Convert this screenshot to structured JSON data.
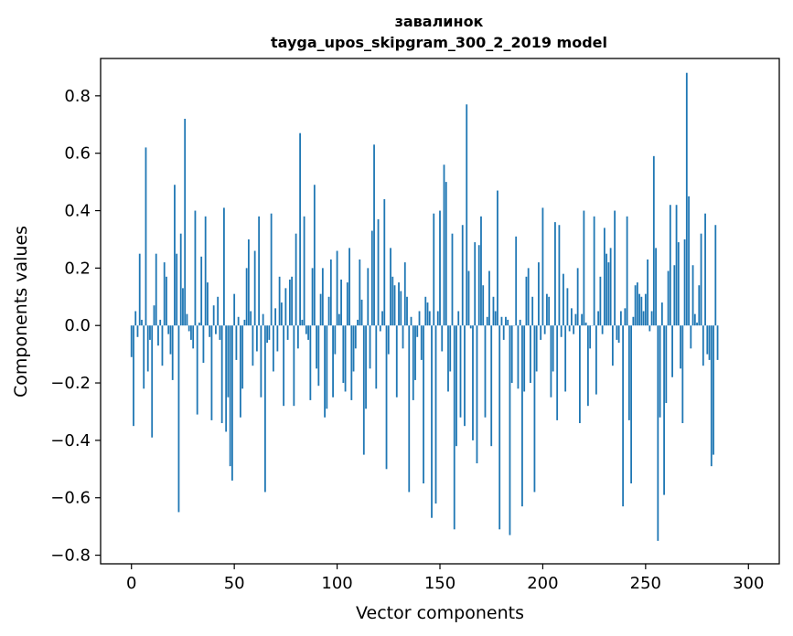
{
  "chart_data": {
    "type": "bar",
    "title_line1": "завалинок",
    "title_line2": "tayga_upos_skipgram_300_2_2019 model",
    "xlabel": "Vector components",
    "ylabel": "Components values",
    "xlim": [
      -15,
      315
    ],
    "ylim": [
      -0.83,
      0.93
    ],
    "xticks": [
      0,
      50,
      100,
      150,
      200,
      250,
      300
    ],
    "xtick_labels": [
      "0",
      "50",
      "100",
      "150",
      "200",
      "250",
      "300"
    ],
    "yticks": [
      -0.8,
      -0.6,
      -0.4,
      -0.2,
      0.0,
      0.2,
      0.4,
      0.6,
      0.8
    ],
    "ytick_labels": [
      "−0.8",
      "−0.6",
      "−0.4",
      "−0.2",
      "0.0",
      "0.2",
      "0.4",
      "0.6",
      "0.8"
    ],
    "bar_color": "#1f77b4",
    "grid": false,
    "values": [
      -0.11,
      -0.35,
      0.05,
      -0.04,
      0.25,
      0.02,
      -0.22,
      0.62,
      -0.16,
      -0.05,
      -0.39,
      0.07,
      0.25,
      -0.07,
      0.02,
      -0.14,
      0.22,
      0.17,
      -0.03,
      -0.1,
      -0.19,
      0.49,
      0.25,
      -0.65,
      0.32,
      0.13,
      0.72,
      0.04,
      -0.02,
      -0.05,
      -0.08,
      0.4,
      -0.31,
      0.01,
      0.24,
      -0.13,
      0.38,
      0.15,
      -0.04,
      -0.33,
      0.07,
      -0.03,
      0.1,
      -0.05,
      -0.34,
      0.41,
      -0.37,
      -0.25,
      -0.49,
      -0.54,
      0.11,
      -0.12,
      0.03,
      -0.32,
      -0.22,
      0.02,
      0.2,
      0.3,
      0.05,
      -0.14,
      0.26,
      -0.09,
      0.38,
      -0.25,
      0.04,
      -0.58,
      -0.06,
      -0.05,
      0.39,
      -0.16,
      0.06,
      -0.09,
      0.17,
      0.08,
      -0.28,
      0.13,
      -0.05,
      0.16,
      0.17,
      -0.28,
      0.32,
      -0.08,
      0.67,
      0.02,
      0.38,
      -0.03,
      -0.05,
      -0.26,
      0.2,
      0.49,
      -0.15,
      -0.21,
      0.11,
      0.2,
      -0.32,
      -0.29,
      0.1,
      0.23,
      -0.25,
      -0.1,
      0.26,
      0.04,
      0.16,
      -0.2,
      -0.23,
      0.15,
      0.27,
      -0.26,
      -0.16,
      -0.08,
      0.02,
      0.23,
      0.09,
      -0.45,
      -0.29,
      0.2,
      -0.15,
      0.33,
      0.63,
      -0.22,
      0.37,
      -0.02,
      0.05,
      0.44,
      -0.5,
      -0.1,
      0.27,
      0.17,
      0.14,
      -0.25,
      0.15,
      0.12,
      -0.08,
      0.22,
      0.1,
      -0.58,
      0.03,
      -0.26,
      -0.19,
      -0.04,
      0.05,
      -0.12,
      -0.55,
      0.1,
      0.08,
      0.05,
      -0.67,
      0.39,
      -0.62,
      0.05,
      0.4,
      -0.09,
      0.56,
      0.5,
      -0.23,
      -0.16,
      0.32,
      -0.71,
      -0.42,
      0.05,
      -0.32,
      0.35,
      -0.35,
      0.77,
      0.19,
      -0.01,
      -0.4,
      0.29,
      -0.48,
      0.28,
      0.38,
      0.14,
      -0.32,
      0.03,
      0.19,
      -0.42,
      0.1,
      0.05,
      0.47,
      -0.71,
      0.03,
      -0.05,
      0.03,
      0.02,
      -0.73,
      -0.2,
      0.0,
      0.31,
      -0.22,
      0.02,
      -0.63,
      -0.23,
      0.17,
      0.2,
      -0.2,
      0.1,
      -0.58,
      -0.16,
      0.22,
      -0.05,
      0.41,
      -0.03,
      0.11,
      0.1,
      -0.25,
      -0.16,
      0.36,
      -0.33,
      0.35,
      -0.04,
      0.18,
      -0.23,
      0.13,
      -0.02,
      0.06,
      -0.03,
      0.04,
      0.2,
      -0.34,
      0.04,
      0.4,
      0.01,
      -0.28,
      -0.08,
      0.0,
      0.38,
      -0.24,
      0.05,
      0.17,
      -0.03,
      0.34,
      0.25,
      0.22,
      0.27,
      -0.14,
      0.4,
      -0.05,
      -0.06,
      0.05,
      -0.63,
      0.06,
      0.38,
      -0.33,
      -0.55,
      0.03,
      0.14,
      0.15,
      0.11,
      0.1,
      0.05,
      0.11,
      0.23,
      -0.02,
      0.05,
      0.59,
      0.27,
      -0.75,
      -0.32,
      0.08,
      -0.59,
      -0.27,
      0.19,
      0.42,
      -0.18,
      0.21,
      0.42,
      0.29,
      -0.15,
      -0.34,
      0.3,
      0.88,
      0.45,
      -0.08,
      0.21,
      0.04,
      0.01,
      0.14,
      0.32,
      -0.14,
      0.39,
      -0.1,
      -0.12,
      -0.49,
      -0.45,
      0.35,
      -0.12
    ]
  }
}
